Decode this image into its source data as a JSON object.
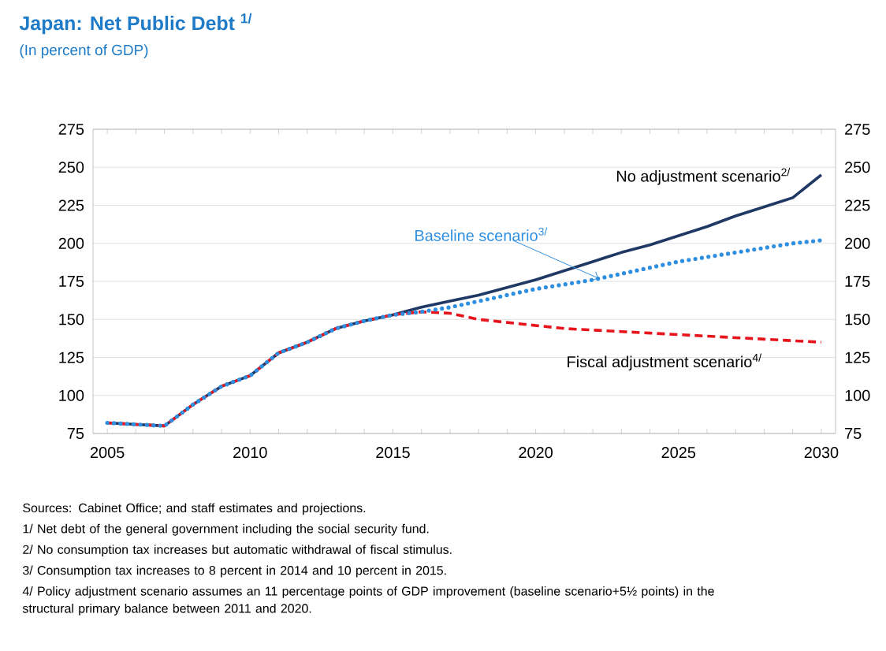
{
  "chart_data": {
    "type": "line",
    "title": "Japan: Net Public Debt $^{1/}$",
    "subtitle": "(In percent of GDP)",
    "x": [
      2005,
      2006,
      2007,
      2008,
      2009,
      2010,
      2011,
      2012,
      2013,
      2014,
      2015,
      2016,
      2017,
      2018,
      2019,
      2020,
      2021,
      2022,
      2023,
      2024,
      2025,
      2026,
      2027,
      2028,
      2029,
      2030
    ],
    "series": [
      {
        "name": "No adjustment scenario$^{2/}$",
        "color": "#1f3864",
        "line_style": "solid",
        "values": [
          82,
          81,
          80,
          94,
          106,
          113,
          128,
          135,
          144,
          149,
          153,
          158,
          162,
          166,
          171,
          176,
          182,
          188,
          194,
          199,
          205,
          211,
          218,
          224,
          230,
          245
        ]
      },
      {
        "name": "Fiscal adjustment scenario$^{4/}$",
        "color": "#e8141c",
        "line_style": "dashed",
        "values": [
          82,
          81,
          80,
          94,
          106,
          113,
          128,
          135,
          144,
          149,
          153,
          155,
          154,
          150,
          148,
          146,
          144,
          143,
          142,
          141,
          140,
          139,
          138,
          137,
          136,
          135
        ]
      },
      {
        "name": "Baseline scenario$^{3/}$",
        "color": "#2e8ee0",
        "line_style": "dotted",
        "values": [
          82,
          81,
          80,
          94,
          106,
          113,
          128,
          135,
          144,
          149,
          153,
          155,
          158,
          162,
          166,
          170,
          173,
          176,
          180,
          184,
          188,
          191,
          194,
          197,
          200,
          202
        ]
      }
    ],
    "xlim": [
      2004.5,
      2030.5
    ],
    "xticks": [
      2005,
      {
        "value": 2006,
        "label": null
      },
      {
        "value": 2007,
        "label": null
      },
      {
        "value": 2008,
        "label": null
      },
      {
        "value": 2009,
        "label": null
      },
      2010,
      {
        "value": 2011,
        "label": null
      },
      {
        "value": 2012,
        "label": null
      },
      {
        "value": 2013,
        "label": null
      },
      {
        "value": 2014,
        "label": null
      },
      2015,
      {
        "value": 2016,
        "label": null
      },
      {
        "value": 2017,
        "label": null
      },
      {
        "value": 2018,
        "label": null
      },
      {
        "value": 2019,
        "label": null
      },
      2020,
      {
        "value": 2021,
        "label": null
      },
      {
        "value": 2022,
        "label": null
      },
      {
        "value": 2023,
        "label": null
      },
      {
        "value": 2024,
        "label": null
      },
      2025,
      {
        "value": 2026,
        "label": null
      },
      {
        "value": 2027,
        "label": null
      },
      {
        "value": 2028,
        "label": null
      },
      {
        "value": 2029,
        "label": null
      },
      2030
    ],
    "ylim": [
      75,
      275
    ],
    "yticks": [
      75,
      100,
      125,
      150,
      175,
      200,
      225,
      250,
      275
    ],
    "y2lim": [
      75,
      275
    ],
    "y2ticks": [
      75,
      100,
      125,
      150,
      175,
      200,
      225,
      250,
      275
    ],
    "grid": "y",
    "annotations": [
      "Sources: Cabinet Office; and staff estimates and projections.",
      "1/ Net debt of the general government including the social security fund.",
      "2/ No consumption tax increases but automatic withdrawal of fiscal stimulus.",
      "3/ Consumption tax increases to 8 percent in 2014 and 10 percent in 2015.",
      "4/ Policy adjustment scenario assumes an 11 percentage points of GDP improvement (baseline scenario+5½ points) in the structural primary balance between 2011 and 2020."
    ]
  }
}
